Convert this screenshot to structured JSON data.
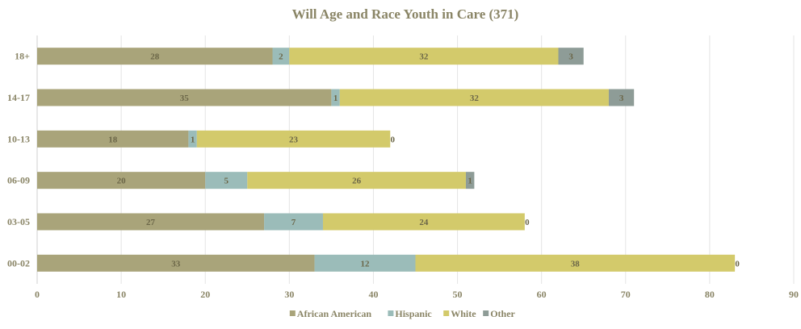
{
  "chart_data": {
    "type": "bar",
    "orientation": "horizontal",
    "stacked": true,
    "title": "Will Age and Race Youth in Care (371)",
    "categories": [
      "00-02",
      "03-05",
      "06-09",
      "10-13",
      "14-17",
      "18+"
    ],
    "series": [
      {
        "name": "African American",
        "values": [
          33,
          27,
          20,
          18,
          35,
          28
        ],
        "color": "#a9a47a"
      },
      {
        "name": "Hispanic",
        "values": [
          12,
          7,
          5,
          1,
          1,
          2
        ],
        "color": "#9bbcb9"
      },
      {
        "name": "White",
        "values": [
          38,
          24,
          26,
          23,
          32,
          32
        ],
        "color": "#d3ca6b"
      },
      {
        "name": "Other",
        "values": [
          0,
          0,
          1,
          0,
          3,
          3
        ],
        "color": "#8e9c97"
      }
    ],
    "xlim": [
      0,
      90
    ],
    "xticks": [
      0,
      10,
      20,
      30,
      40,
      50,
      60,
      70,
      80,
      90
    ],
    "grid": true,
    "legend": "bottom"
  }
}
